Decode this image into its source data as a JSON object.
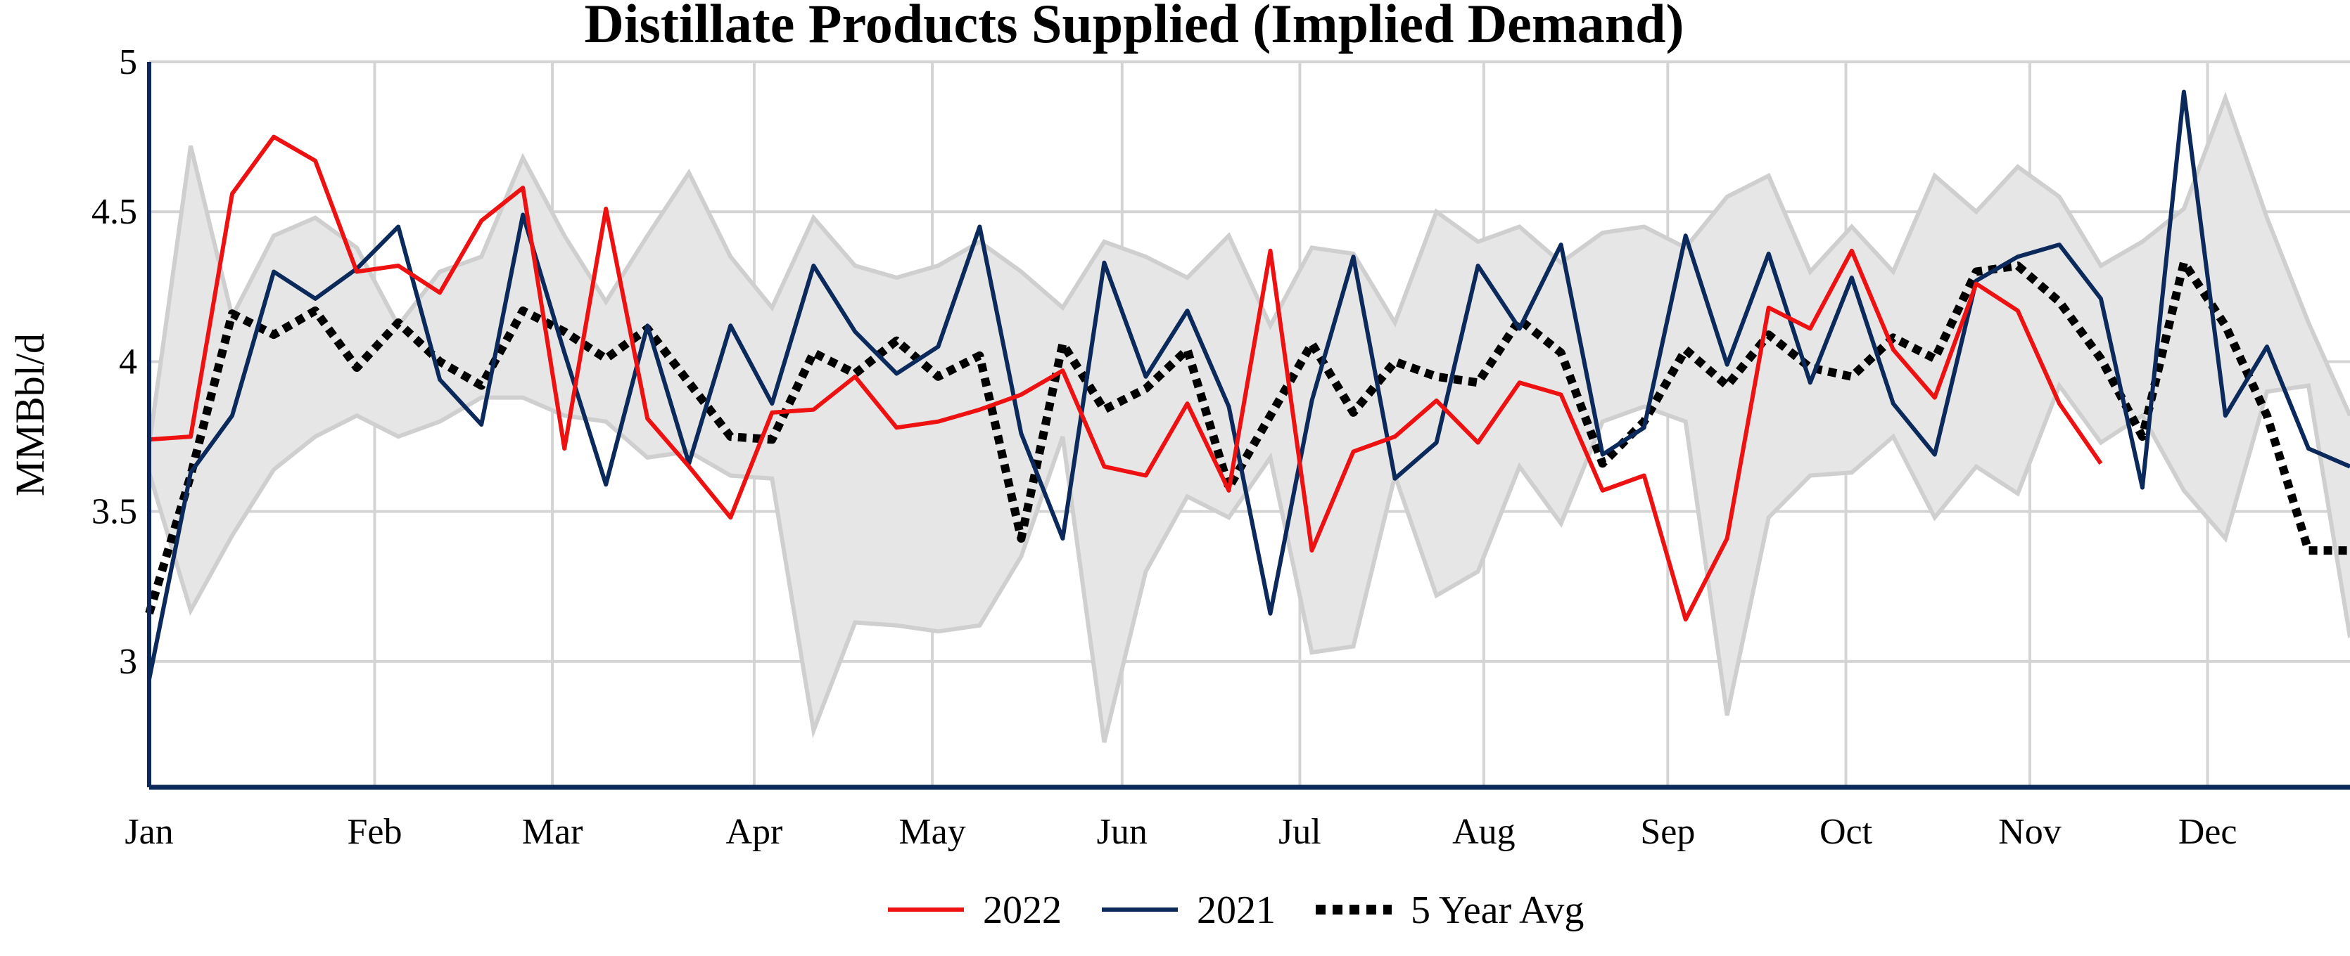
{
  "chart_data": {
    "type": "line",
    "title": "Distillate Products Supplied (Implied Demand)",
    "xlabel": "",
    "ylabel": "MMBbl/d",
    "x_ticks": [
      "Jan",
      "Feb",
      "Mar",
      "Apr",
      "May",
      "Jun",
      "Jul",
      "Aug",
      "Sep",
      "Oct",
      "Nov",
      "Dec"
    ],
    "y_ticks": [
      "3",
      "3.5",
      "4",
      "4.5",
      "5"
    ],
    "ylim": [
      2.58,
      5.0
    ],
    "xlim_weeks": [
      0,
      53
    ],
    "grid": true,
    "legend_position": "bottom-center",
    "band": {
      "name": "5 Year Range",
      "x": [
        0,
        1,
        2,
        3,
        4,
        5,
        6,
        7,
        8,
        9,
        10,
        11,
        12,
        13,
        14,
        15,
        16,
        17,
        18,
        19,
        20,
        21,
        22,
        23,
        24,
        25,
        26,
        27,
        28,
        29,
        30,
        31,
        32,
        33,
        34,
        35,
        36,
        37,
        38,
        39,
        40,
        41,
        42,
        43,
        44,
        45,
        46,
        47,
        48,
        49,
        50,
        51,
        52,
        53
      ],
      "low": [
        3.63,
        3.17,
        3.42,
        3.64,
        3.75,
        3.82,
        3.75,
        3.8,
        3.88,
        3.88,
        3.82,
        3.8,
        3.68,
        3.7,
        3.62,
        3.61,
        2.77,
        3.13,
        3.12,
        3.1,
        3.12,
        3.35,
        3.75,
        2.73,
        3.3,
        3.55,
        3.48,
        3.68,
        3.03,
        3.05,
        3.62,
        3.22,
        3.3,
        3.65,
        3.46,
        3.8,
        3.85,
        3.8,
        2.82,
        3.48,
        3.62,
        3.63,
        3.75,
        3.48,
        3.65,
        3.56,
        3.92,
        3.73,
        3.82,
        3.57,
        3.41,
        3.9,
        3.92,
        3.08
      ],
      "high": [
        3.72,
        4.72,
        4.15,
        4.42,
        4.48,
        4.38,
        4.12,
        4.3,
        4.35,
        4.68,
        4.42,
        4.2,
        4.42,
        4.63,
        4.35,
        4.18,
        4.48,
        4.32,
        4.28,
        4.32,
        4.4,
        4.3,
        4.18,
        4.4,
        4.35,
        4.28,
        4.42,
        4.12,
        4.38,
        4.36,
        4.13,
        4.5,
        4.4,
        4.45,
        4.33,
        4.43,
        4.45,
        4.38,
        4.55,
        4.62,
        4.3,
        4.45,
        4.3,
        4.62,
        4.5,
        4.65,
        4.55,
        4.32,
        4.4,
        4.51,
        4.88,
        4.48,
        4.13,
        3.82
      ]
    },
    "series": [
      {
        "name": "2022",
        "color": "#ee1111",
        "style": "solid",
        "x": [
          0,
          1,
          2,
          3,
          4,
          5,
          6,
          7,
          8,
          9,
          10,
          11,
          12,
          13,
          14,
          15,
          16,
          17,
          18,
          19,
          20,
          21,
          22,
          23,
          24,
          25,
          26,
          27,
          28,
          29,
          30,
          31,
          32,
          33,
          34,
          35,
          36,
          37,
          38,
          39,
          40,
          41,
          42,
          43,
          44,
          45,
          46,
          47
        ],
        "values": [
          3.74,
          3.75,
          4.56,
          4.75,
          4.67,
          4.3,
          4.32,
          4.23,
          4.47,
          4.58,
          3.71,
          4.51,
          3.81,
          3.65,
          3.48,
          3.83,
          3.84,
          3.95,
          3.78,
          3.8,
          3.84,
          3.89,
          3.97,
          3.65,
          3.62,
          3.86,
          3.57,
          4.37,
          3.37,
          3.7,
          3.75,
          3.87,
          3.73,
          3.93,
          3.89,
          3.57,
          3.62,
          3.14,
          3.41,
          4.18,
          4.11,
          4.37,
          4.04,
          3.88,
          4.26,
          4.17,
          3.86,
          3.66
        ]
      },
      {
        "name": "2021",
        "color": "#0b2a5b",
        "style": "solid",
        "x": [
          0,
          1,
          2,
          3,
          4,
          5,
          6,
          7,
          8,
          9,
          10,
          11,
          12,
          13,
          14,
          15,
          16,
          17,
          18,
          19,
          20,
          21,
          22,
          23,
          24,
          25,
          26,
          27,
          28,
          29,
          30,
          31,
          32,
          33,
          34,
          35,
          36,
          37,
          38,
          39,
          40,
          41,
          42,
          43,
          44,
          45,
          46,
          47,
          48,
          49,
          50,
          51,
          52,
          53
        ],
        "values": [
          2.94,
          3.63,
          3.82,
          4.3,
          4.21,
          4.31,
          4.45,
          3.94,
          3.79,
          4.49,
          4.03,
          3.59,
          4.12,
          3.66,
          4.12,
          3.86,
          4.32,
          4.1,
          3.96,
          4.05,
          4.45,
          3.76,
          3.41,
          4.33,
          3.95,
          4.17,
          3.85,
          3.16,
          3.87,
          4.35,
          3.61,
          3.73,
          4.32,
          4.11,
          4.39,
          3.69,
          3.78,
          4.42,
          3.99,
          4.36,
          3.93,
          4.28,
          3.86,
          3.69,
          4.27,
          4.35,
          4.39,
          4.21,
          3.58,
          4.9,
          3.82,
          4.05,
          3.71,
          3.65
        ]
      },
      {
        "name": "5 Year Avg",
        "color": "#000000",
        "style": "dotted",
        "x": [
          0,
          1,
          2,
          3,
          4,
          5,
          6,
          7,
          8,
          9,
          10,
          11,
          12,
          13,
          14,
          15,
          16,
          17,
          18,
          19,
          20,
          21,
          22,
          23,
          24,
          25,
          26,
          27,
          28,
          29,
          30,
          31,
          32,
          33,
          34,
          35,
          36,
          37,
          38,
          39,
          40,
          41,
          42,
          43,
          44,
          45,
          46,
          47,
          48,
          49,
          50,
          51,
          52,
          53
        ],
        "values": [
          3.16,
          3.62,
          4.16,
          4.09,
          4.17,
          3.98,
          4.13,
          4.0,
          3.92,
          4.17,
          4.1,
          4.01,
          4.11,
          3.93,
          3.75,
          3.74,
          4.03,
          3.96,
          4.07,
          3.95,
          4.02,
          3.41,
          4.06,
          3.84,
          3.91,
          4.04,
          3.58,
          3.82,
          4.06,
          3.83,
          4.0,
          3.95,
          3.93,
          4.14,
          4.03,
          3.66,
          3.8,
          4.04,
          3.92,
          4.09,
          3.98,
          3.95,
          4.08,
          4.01,
          4.3,
          4.32,
          4.2,
          4.01,
          3.75,
          4.33,
          4.12,
          3.82,
          3.37,
          3.37
        ]
      }
    ]
  }
}
